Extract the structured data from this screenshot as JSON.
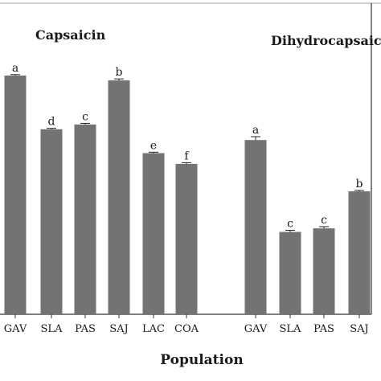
{
  "chart_data": {
    "type": "bar",
    "xlabel": "Population",
    "ylabel": "",
    "ylim": [
      0,
      100
    ],
    "grid": false,
    "color": "#737373",
    "panels": [
      {
        "title": "Capsaicin",
        "categories": [
          "GAV",
          "SLA",
          "PAS",
          "SAJ",
          "LAC",
          "COA"
        ],
        "values": [
          100,
          77.5,
          79.5,
          98,
          67.5,
          63
        ],
        "errors": [
          0.4,
          0.4,
          0.5,
          0.6,
          0.4,
          0.5
        ],
        "letters": [
          "a",
          "d",
          "c",
          "b",
          "e",
          "f"
        ]
      },
      {
        "title": "Dihydrocapsaici",
        "categories": [
          "GAV",
          "SLA",
          "PAS",
          "SAJ"
        ],
        "values": [
          73,
          34.5,
          36,
          51.5
        ],
        "errors": [
          1.4,
          0.7,
          0.7,
          0.4
        ],
        "letters": [
          "a",
          "c",
          "c",
          "b"
        ]
      }
    ]
  }
}
